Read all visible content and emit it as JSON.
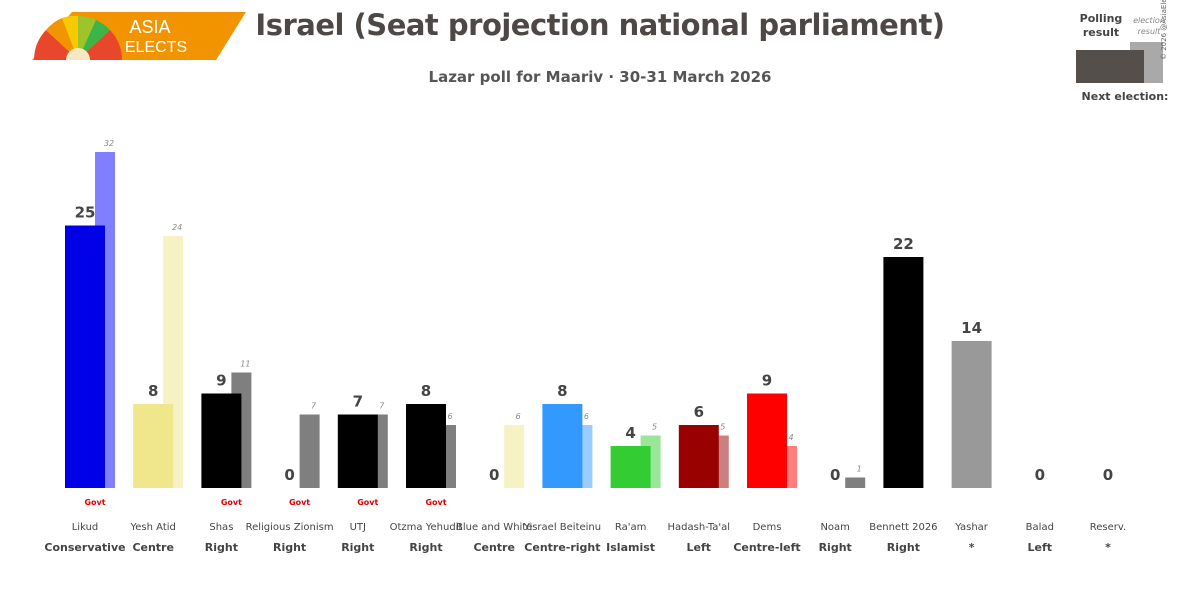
{
  "logo": {
    "line1": "ASIA",
    "line2": "ELECTS"
  },
  "header": {
    "title": "Israel (Seat projection national parliament)",
    "subtitle": "Lazar poll for Maariv · 30-31 March 2026"
  },
  "legend": {
    "polling": "Polling result",
    "election": "election result",
    "next_election": "Next election:"
  },
  "copyright": "© 2026 @AsiaElects",
  "chart_data": {
    "type": "bar",
    "title": "Israel (Seat projection national parliament)",
    "subtitle": "Lazar poll for Maariv · 30-31 March 2026",
    "ylim": [
      0,
      32
    ],
    "govt_label": "Govt",
    "parties": [
      {
        "name": "Likud",
        "ideology": "Conservative",
        "poll": 25,
        "previous": 32,
        "govt": true,
        "color": "#0000e6",
        "prev_color": "#7f7fff"
      },
      {
        "name": "Yesh Atid",
        "ideology": "Centre",
        "poll": 8,
        "previous": 24,
        "govt": false,
        "color": "#f0e68c",
        "prev_color": "#f7f2c4"
      },
      {
        "name": "Shas",
        "ideology": "Right",
        "poll": 9,
        "previous": 11,
        "govt": true,
        "color": "#000000",
        "prev_color": "#7f7f7f"
      },
      {
        "name": "Religious Zionism",
        "ideology": "Right",
        "poll": 0,
        "previous": 7,
        "govt": true,
        "color": "#000000",
        "prev_color": "#7f7f7f"
      },
      {
        "name": "UTJ",
        "ideology": "Right",
        "poll": 7,
        "previous": 7,
        "govt": true,
        "color": "#000000",
        "prev_color": "#7f7f7f"
      },
      {
        "name": "Otzma Yehudit",
        "ideology": "Right",
        "poll": 8,
        "previous": 6,
        "govt": true,
        "color": "#000000",
        "prev_color": "#7f7f7f"
      },
      {
        "name": "Blue and White",
        "ideology": "Centre",
        "poll": 0,
        "previous": 6,
        "govt": false,
        "color": "#f0e68c",
        "prev_color": "#f7f2c4"
      },
      {
        "name": "Yisrael Beiteinu",
        "ideology": "Centre-right",
        "poll": 8,
        "previous": 6,
        "govt": false,
        "color": "#3399ff",
        "prev_color": "#99ccff"
      },
      {
        "name": "Ra'am",
        "ideology": "Islamist",
        "poll": 4,
        "previous": 5,
        "govt": false,
        "color": "#33cc33",
        "prev_color": "#99e699"
      },
      {
        "name": "Hadash-Ta'al",
        "ideology": "Left",
        "poll": 6,
        "previous": 5,
        "govt": false,
        "color": "#990000",
        "prev_color": "#cc7f7f"
      },
      {
        "name": "Dems",
        "ideology": "Centre-left",
        "poll": 9,
        "previous": 4,
        "govt": false,
        "color": "#ff0000",
        "prev_color": "#ff7f7f"
      },
      {
        "name": "Noam",
        "ideology": "Right",
        "poll": 0,
        "previous": 1,
        "govt": false,
        "color": "#000000",
        "prev_color": "#7f7f7f"
      },
      {
        "name": "Bennett 2026",
        "ideology": "Right",
        "poll": 22,
        "previous": null,
        "govt": false,
        "color": "#000000",
        "prev_color": "#7f7f7f"
      },
      {
        "name": "Yashar",
        "ideology": "*",
        "poll": 14,
        "previous": null,
        "govt": false,
        "color": "#999999",
        "prev_color": "#cccccc"
      },
      {
        "name": "Balad",
        "ideology": "Left",
        "poll": 0,
        "previous": null,
        "govt": false,
        "color": "#666666",
        "prev_color": "#aaaaaa"
      },
      {
        "name": "Reserv.",
        "ideology": "*",
        "poll": 0,
        "previous": null,
        "govt": false,
        "color": "#666666",
        "prev_color": "#aaaaaa"
      }
    ]
  }
}
